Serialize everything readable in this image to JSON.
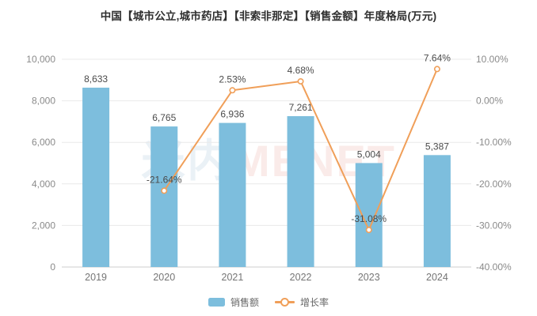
{
  "title": "中国【城市公立,城市药店】【非索非那定】【销售金额】年度格局(万元)",
  "watermark": {
    "cn": "米内",
    "en": "MENET"
  },
  "legend": [
    {
      "label": "销售额",
      "type": "bar"
    },
    {
      "label": "增长率",
      "type": "line"
    }
  ],
  "colors": {
    "bar": "#7dbedd",
    "line": "#f09f59",
    "marker_fill": "#ffffff",
    "grid": "#e9e9e9",
    "axis_line": "#cccccc",
    "tick_label": "#8a8a8a",
    "category_label": "#757575",
    "data_label": "#4a4a4a"
  },
  "chart_data": {
    "type": "bar",
    "subtype": "bar+line combo, dual axis",
    "title": "中国【城市公立,城市药店】【非索非那定】【销售金额】年度格局(万元)",
    "categories": [
      "2019",
      "2020",
      "2021",
      "2022",
      "2023",
      "2024"
    ],
    "series": [
      {
        "name": "销售额",
        "type": "bar",
        "axis": "left",
        "values": [
          8633,
          6765,
          6936,
          7261,
          5004,
          5387
        ],
        "labels": [
          "8,633",
          "6,765",
          "6,936",
          "7,261",
          "5,004",
          "5,387"
        ]
      },
      {
        "name": "增长率",
        "type": "line",
        "axis": "right",
        "values": [
          null,
          -21.64,
          2.53,
          4.68,
          -31.08,
          7.64
        ],
        "labels": [
          null,
          "-21.64%",
          "2.53%",
          "4.68%",
          "-31.08%",
          "7.64%"
        ]
      }
    ],
    "left_axis": {
      "min": 0,
      "max": 10000,
      "tick_labels": [
        "0",
        "2,000",
        "4,000",
        "6,000",
        "8,000",
        "10,000"
      ]
    },
    "right_axis": {
      "min": -40,
      "max": 10,
      "tick_labels": [
        "-40.00%",
        "-30.00%",
        "-20.00%",
        "-10.00%",
        "0.00%",
        "10.00%"
      ]
    },
    "grid": true,
    "legend_position": "bottom"
  }
}
